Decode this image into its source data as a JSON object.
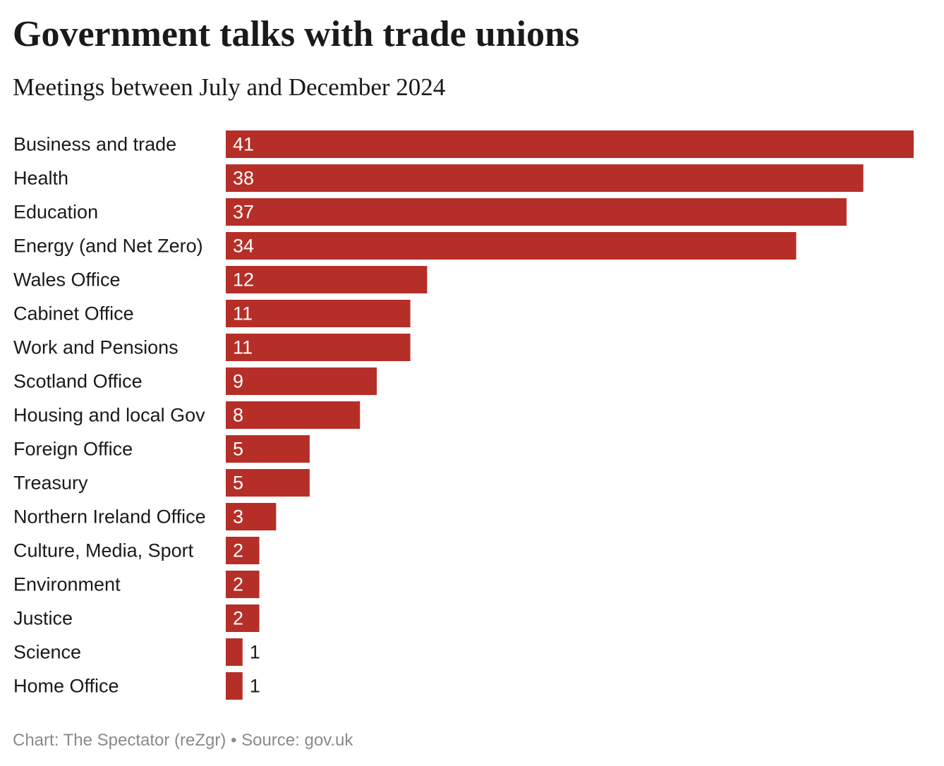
{
  "title": "Government talks with trade unions",
  "subtitle": "Meetings between July and December 2024",
  "footer": {
    "credit": "Chart: The Spectator (reZgr)",
    "separator": "•",
    "source": "Source: gov.uk"
  },
  "colors": {
    "bar": "#b52f28",
    "label_inside": "#ffffff",
    "label_outside": "#1a1a1a",
    "category_text": "#1a1a1a",
    "footer_text": "#8a8a8a"
  },
  "chart_data": {
    "type": "bar",
    "orientation": "horizontal",
    "categories": [
      "Business and trade",
      "Health",
      "Education",
      "Energy (and Net Zero)",
      "Wales Office",
      "Cabinet Office",
      "Work and Pensions",
      "Scotland Office",
      "Housing and local Gov",
      "Foreign Office",
      "Treasury",
      "Northern Ireland Office",
      "Culture, Media, Sport",
      "Environment",
      "Justice",
      "Science",
      "Home Office"
    ],
    "values": [
      41,
      38,
      37,
      34,
      12,
      11,
      11,
      9,
      8,
      5,
      5,
      3,
      2,
      2,
      2,
      1,
      1
    ],
    "data_labels": true,
    "grid": false,
    "legend": "none",
    "xlim": [
      0,
      41
    ]
  }
}
